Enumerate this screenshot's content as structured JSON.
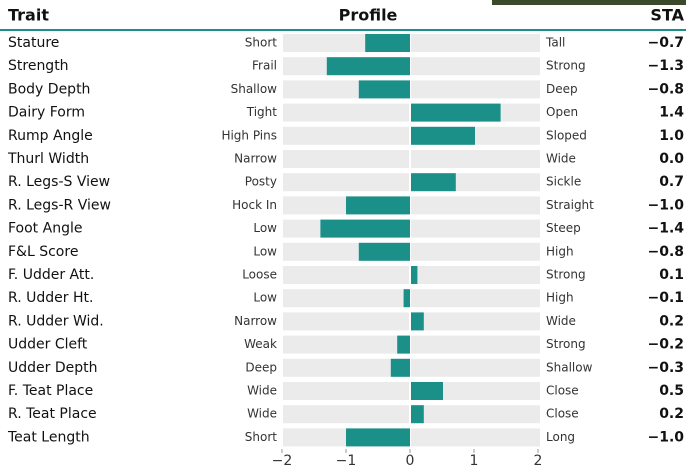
{
  "chart_data": {
    "type": "diverging-bar",
    "headers": {
      "trait": "Trait",
      "profile": "Profile",
      "sta": "STA"
    },
    "categories": [
      "Stature",
      "Strength",
      "Body Depth",
      "Dairy Form",
      "Rump Angle",
      "Thurl Width",
      "R. Legs-S View",
      "R. Legs-R View",
      "Foot Angle",
      "F&L Score",
      "F. Udder Att.",
      "R. Udder Ht.",
      "R. Udder Wid.",
      "Udder Cleft",
      "Udder Depth",
      "F. Teat Place",
      "R. Teat Place",
      "Teat Length"
    ],
    "left_labels": [
      "Short",
      "Frail",
      "Shallow",
      "Tight",
      "High Pins",
      "Narrow",
      "Posty",
      "Hock In",
      "Low",
      "Low",
      "Loose",
      "Low",
      "Narrow",
      "Weak",
      "Deep",
      "Wide",
      "Wide",
      "Short"
    ],
    "right_labels": [
      "Tall",
      "Strong",
      "Deep",
      "Open",
      "Sloped",
      "Wide",
      "Sickle",
      "Straight",
      "Steep",
      "High",
      "Strong",
      "High",
      "Wide",
      "Strong",
      "Shallow",
      "Close",
      "Close",
      "Long"
    ],
    "values": [
      -0.7,
      -1.3,
      -0.8,
      1.4,
      1.0,
      0.0,
      0.7,
      -1.0,
      -1.4,
      -0.8,
      0.1,
      -0.1,
      0.2,
      -0.2,
      -0.3,
      0.5,
      0.2,
      -1.0
    ],
    "value_labels": [
      "−0.7",
      "−1.3",
      "−0.8",
      "1.4",
      "1.0",
      "0.0",
      "0.7",
      "−1.0",
      "−1.4",
      "−0.8",
      "0.1",
      "−0.1",
      "0.2",
      "−0.2",
      "−0.3",
      "0.5",
      "0.2",
      "−1.0"
    ],
    "color": "#1a9089",
    "xlim": [
      -2,
      2
    ],
    "xticks": [
      {
        "value": -2,
        "label": "−2"
      },
      {
        "value": -1,
        "label": "−1"
      },
      0,
      1,
      2
    ]
  }
}
